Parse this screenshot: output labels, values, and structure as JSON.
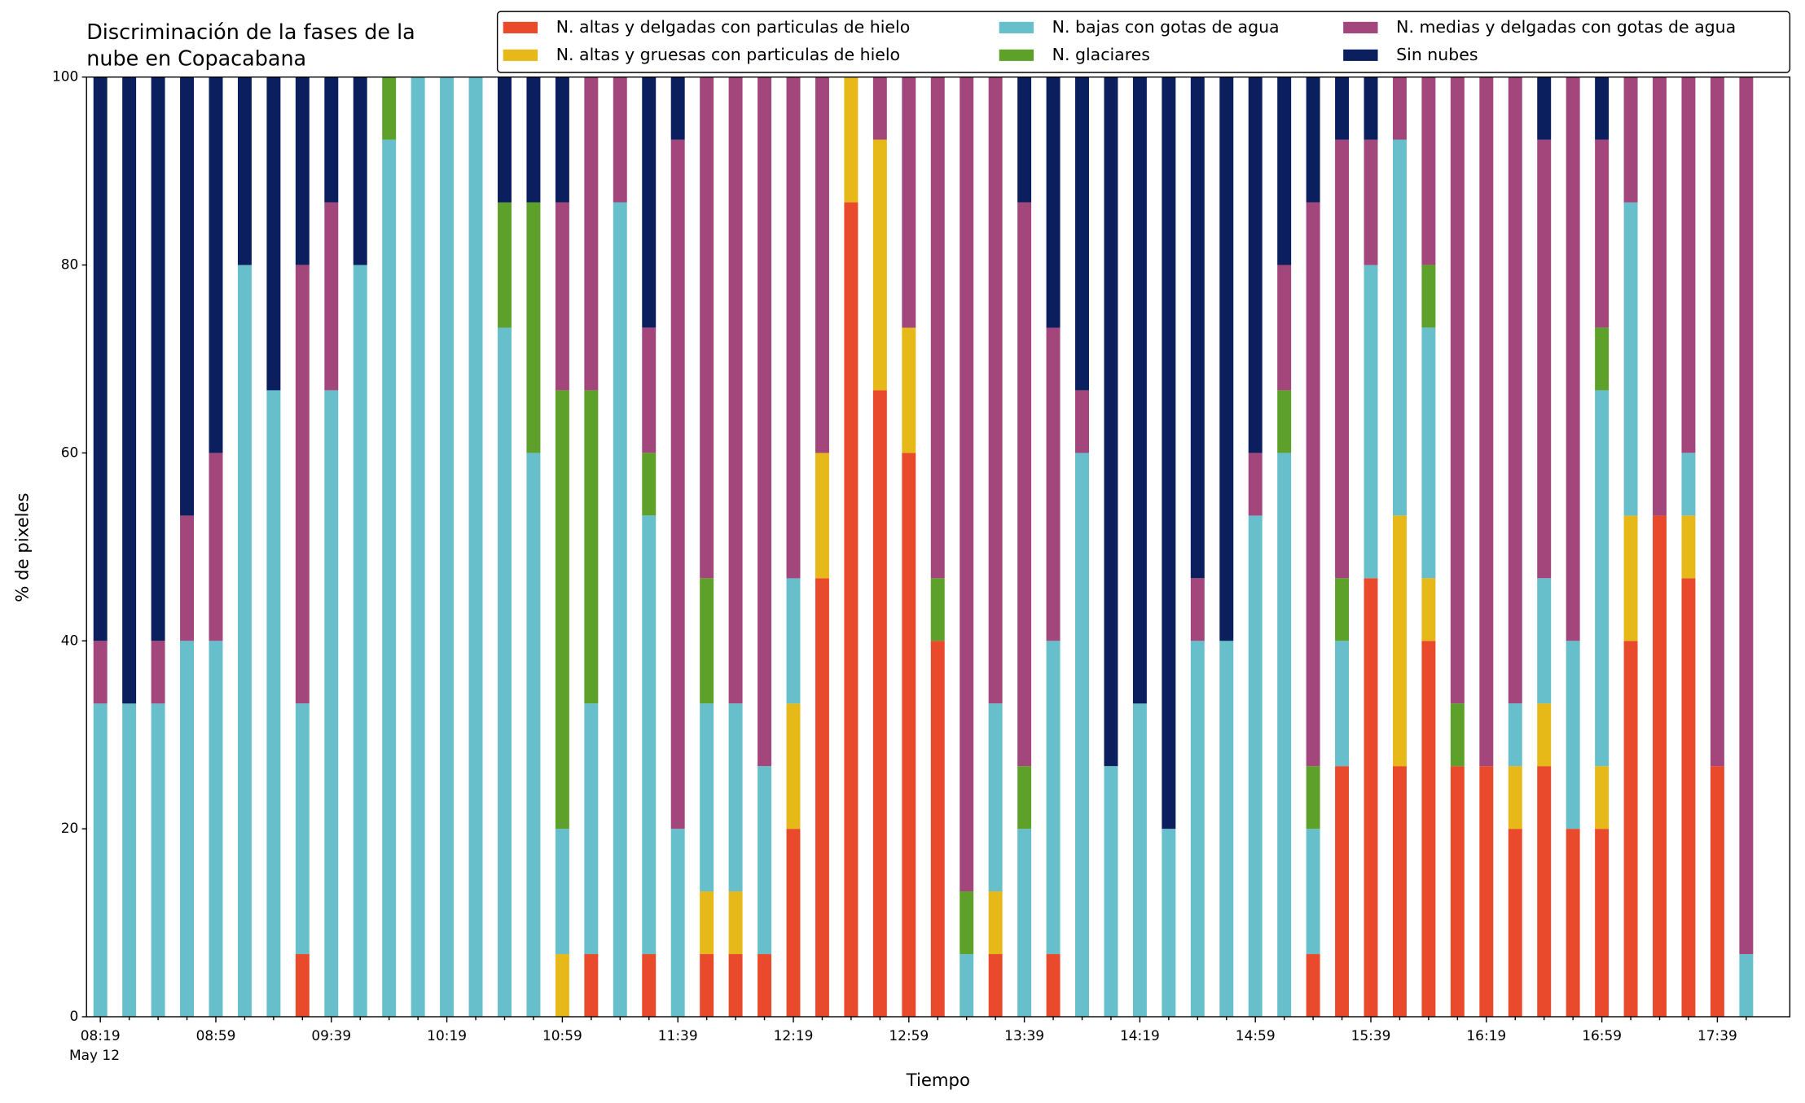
{
  "chart_data": {
    "type": "stacked_bar",
    "title": [
      "Discriminación de la fases de la",
      "nube en Copacabana"
    ],
    "x_label": "Tiempo",
    "y_label": "% de pixeles",
    "categories": [
      "08:19",
      null,
      null,
      null,
      "08:59",
      null,
      null,
      null,
      "09:39",
      null,
      null,
      null,
      "10:19",
      null,
      null,
      null,
      "10:59",
      null,
      null,
      null,
      "11:39",
      null,
      null,
      null,
      "12:19",
      null,
      null,
      null,
      "12:59",
      null,
      null,
      null,
      "13:39",
      null,
      null,
      null,
      "14:19",
      null,
      null,
      null,
      "14:59",
      null,
      null,
      null,
      "15:39",
      null,
      null,
      null,
      "16:19",
      null,
      null,
      null,
      "16:59",
      null,
      null,
      null,
      "17:39",
      null
    ],
    "x_date_label": "May 12",
    "ylim": [
      0,
      100
    ],
    "yticks": [
      0,
      20,
      40,
      60,
      80,
      100
    ],
    "legend": "top-right",
    "series": [
      {
        "name": "N. altas y delgadas con particulas de hielo",
        "color": "#ea4a2c",
        "values": [
          0,
          0,
          0,
          0,
          0,
          0,
          0,
          6.67,
          0,
          0,
          0,
          0,
          0,
          0,
          0,
          0,
          0,
          6.67,
          0,
          6.67,
          0,
          6.67,
          6.67,
          6.67,
          20,
          46.67,
          86.67,
          66.67,
          60,
          40,
          0,
          6.67,
          0,
          6.67,
          0,
          0,
          0,
          0,
          0,
          0,
          0,
          0,
          6.67,
          26.67,
          46.67,
          26.67,
          40,
          26.67,
          26.67,
          20,
          26.67,
          20,
          20,
          40,
          53.33,
          46.67,
          26.67,
          0
        ]
      },
      {
        "name": "N. altas y gruesas con particulas de hielo",
        "color": "#e6b818",
        "values": [
          0,
          0,
          0,
          0,
          0,
          0,
          0,
          0,
          0,
          0,
          0,
          0,
          0,
          0,
          0,
          0,
          6.67,
          0,
          0,
          0,
          0,
          6.67,
          6.67,
          0,
          13.33,
          13.33,
          13.33,
          26.67,
          13.33,
          0,
          0,
          6.67,
          0,
          0,
          0,
          0,
          0,
          0,
          0,
          0,
          0,
          0,
          0,
          0,
          0,
          26.67,
          6.67,
          0,
          0,
          6.67,
          6.67,
          0,
          6.67,
          13.33,
          0,
          6.67,
          0,
          0
        ]
      },
      {
        "name": "N. bajas con gotas de agua",
        "color": "#66bfcb",
        "values": [
          33.33,
          33.33,
          33.33,
          40,
          40,
          80,
          66.67,
          26.67,
          66.67,
          80,
          93.33,
          100,
          100,
          100,
          73.33,
          60,
          13.33,
          26.67,
          86.67,
          46.67,
          20,
          20,
          20,
          20,
          13.33,
          0,
          0,
          0,
          0,
          0,
          6.67,
          20,
          20,
          33.33,
          60,
          26.67,
          33.33,
          20,
          40,
          40,
          53.33,
          60,
          13.33,
          13.33,
          33.33,
          40,
          26.67,
          0,
          0,
          6.67,
          13.33,
          20,
          40,
          33.33,
          0,
          6.67,
          0,
          6.67
        ]
      },
      {
        "name": "N. glaciares",
        "color": "#5da12b",
        "values": [
          0,
          0,
          0,
          0,
          0,
          0,
          0,
          0,
          0,
          0,
          6.67,
          0,
          0,
          0,
          13.33,
          26.67,
          46.67,
          33.33,
          0,
          6.67,
          0,
          13.33,
          0,
          0,
          0,
          0,
          0,
          0,
          0,
          6.67,
          6.67,
          0,
          6.67,
          0,
          0,
          0,
          0,
          0,
          0,
          0,
          0,
          6.67,
          6.67,
          6.67,
          0,
          0,
          6.67,
          6.67,
          0,
          0,
          0,
          0,
          6.67,
          0,
          0,
          0,
          0,
          0
        ]
      },
      {
        "name": "N. medias y delgadas con gotas de agua",
        "color": "#a2467c",
        "values": [
          6.67,
          0,
          6.67,
          13.33,
          20,
          0,
          0,
          46.67,
          20,
          0,
          0,
          0,
          0,
          0,
          0,
          0,
          20,
          33.33,
          13.33,
          13.33,
          73.33,
          53.33,
          66.67,
          73.33,
          53.33,
          40,
          0,
          6.67,
          26.67,
          53.33,
          86.67,
          66.67,
          60,
          33.33,
          6.67,
          0,
          0,
          0,
          6.67,
          0,
          6.67,
          13.33,
          60,
          46.67,
          13.33,
          6.67,
          20,
          66.67,
          73.33,
          66.67,
          46.67,
          60,
          20,
          13.33,
          46.67,
          40,
          73.33,
          93.33
        ]
      },
      {
        "name": "Sin nubes",
        "color": "#0b1f5e",
        "values": [
          60,
          66.67,
          60,
          46.67,
          40,
          20,
          33.33,
          20,
          13.33,
          20,
          0,
          0,
          0,
          0,
          13.33,
          13.33,
          13.33,
          0,
          0,
          26.67,
          6.67,
          0,
          0,
          0,
          0,
          0,
          0,
          0,
          0,
          0,
          0,
          0,
          13.33,
          26.67,
          33.33,
          73.33,
          66.67,
          80,
          53.33,
          60,
          40,
          20,
          13.33,
          6.67,
          6.67,
          0,
          0,
          0,
          0,
          0,
          6.67,
          0,
          6.67,
          0,
          0,
          0,
          0,
          0
        ]
      }
    ]
  }
}
